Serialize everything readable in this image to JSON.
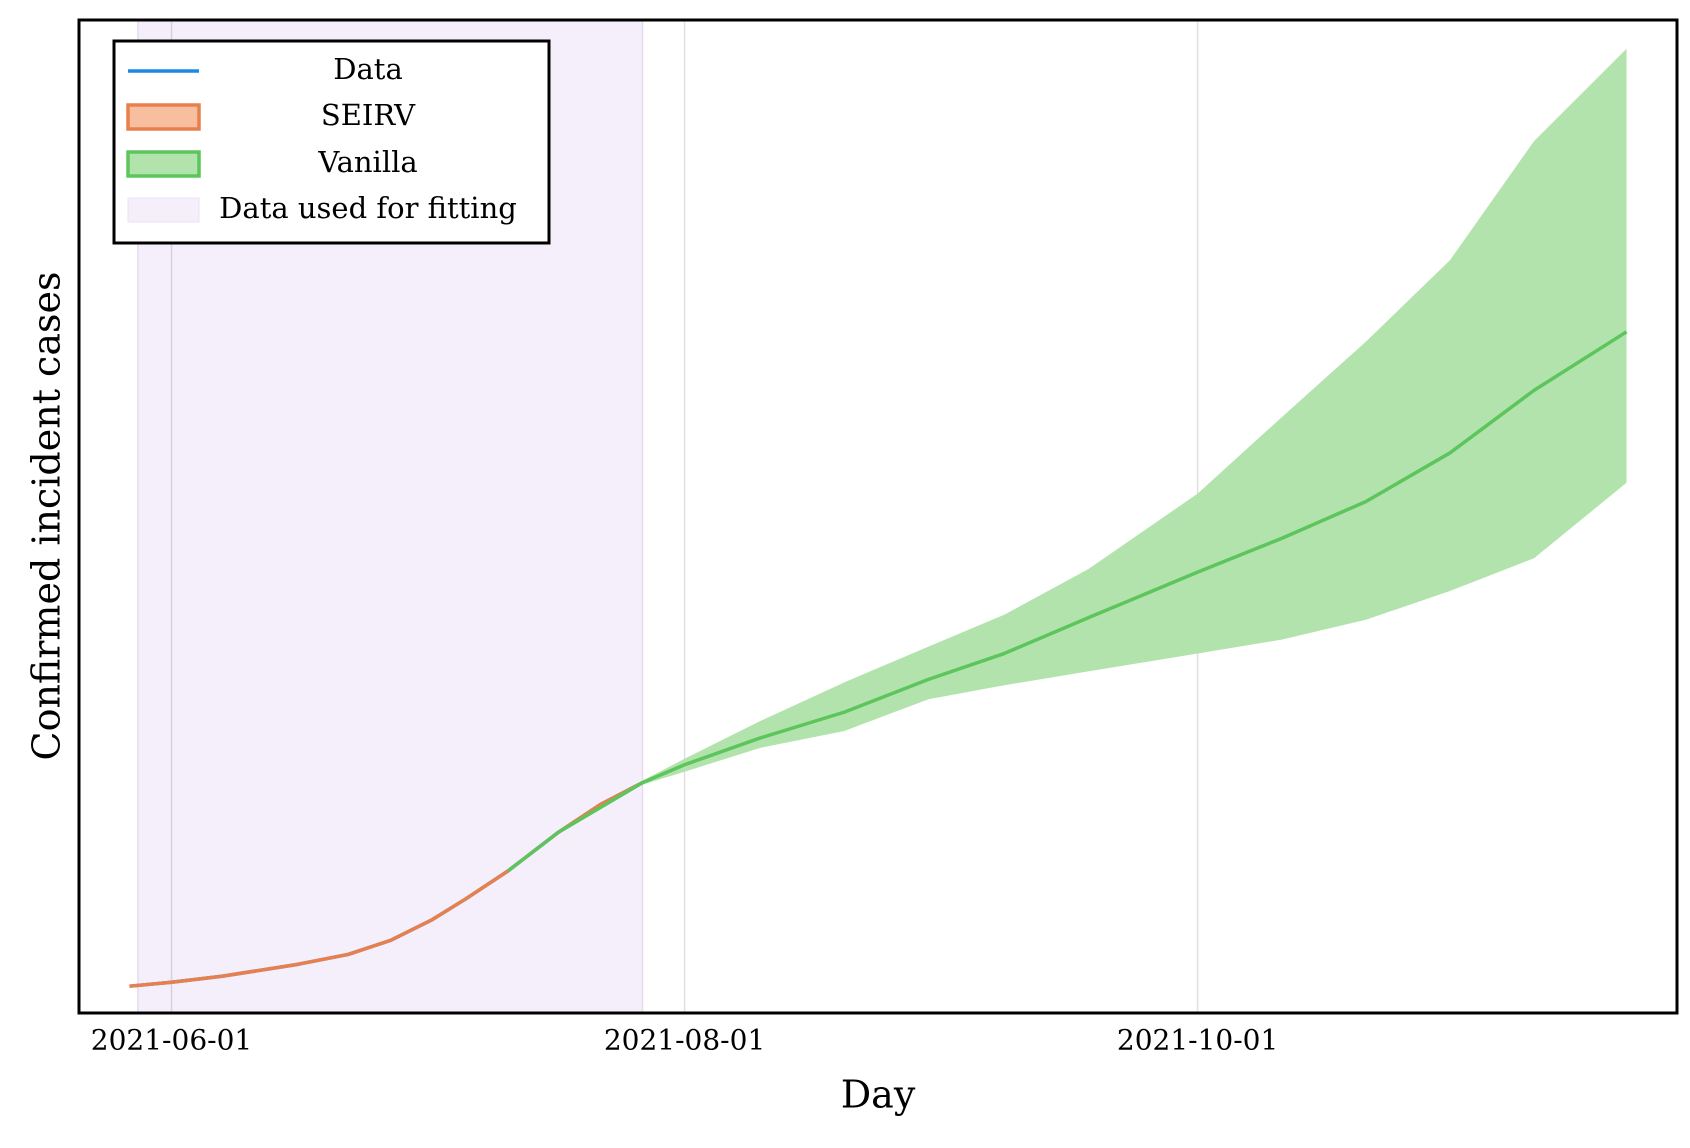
{
  "chart_data": {
    "type": "line",
    "xlabel": "Day",
    "ylabel": "Confirmed incident cases",
    "xlim": [
      "2021-05-21",
      "2021-11-27"
    ],
    "xticks": [
      "2021-06-01",
      "2021-08-01",
      "2021-10-01"
    ],
    "ylim": [
      0,
      100
    ],
    "grid": true,
    "legend": "upper left",
    "fit_range": {
      "name": "Data used for fitting",
      "start": "2021-05-28",
      "end": "2021-07-27",
      "color": "#f5eefb"
    },
    "series": [
      {
        "name": "Data",
        "color": "#1e88e5",
        "x": [
          "2021-05-27",
          "2021-06-01",
          "2021-06-07",
          "2021-06-16",
          "2021-06-22",
          "2021-06-27",
          "2021-07-02",
          "2021-07-06",
          "2021-07-11",
          "2021-07-17",
          "2021-07-22",
          "2021-07-27"
        ],
        "values": [
          2.7,
          3.1,
          3.7,
          4.9,
          5.9,
          7.3,
          9.4,
          11.5,
          14.3,
          18.2,
          21.0,
          23.2
        ]
      },
      {
        "name": "SEIRV",
        "color": "#e8804d",
        "band_color": "#f7bfa0",
        "x": [
          "2021-05-27",
          "2021-06-01",
          "2021-06-07",
          "2021-06-16",
          "2021-06-22",
          "2021-06-27",
          "2021-07-02",
          "2021-07-06",
          "2021-07-11",
          "2021-07-17",
          "2021-07-22",
          "2021-07-27"
        ],
        "values": [
          2.7,
          3.1,
          3.7,
          4.9,
          5.9,
          7.3,
          9.4,
          11.5,
          14.3,
          18.2,
          21.0,
          23.2
        ]
      },
      {
        "name": "Vanilla",
        "color": "#5cc55c",
        "band_color": "#b3e3ad",
        "x": [
          "2021-07-11",
          "2021-07-17",
          "2021-07-27",
          "2021-08-01",
          "2021-08-10",
          "2021-08-20",
          "2021-08-30",
          "2021-09-08",
          "2021-09-18",
          "2021-10-01",
          "2021-10-11",
          "2021-10-21",
          "2021-10-31",
          "2021-11-10",
          "2021-11-21"
        ],
        "values": [
          14.3,
          18.2,
          23.2,
          25.0,
          27.7,
          30.3,
          33.6,
          36.2,
          39.8,
          44.4,
          47.8,
          51.5,
          56.4,
          62.7,
          68.6
        ],
        "upper": [
          14.3,
          18.4,
          23.4,
          25.6,
          29.4,
          33.3,
          36.9,
          40.1,
          44.7,
          52.3,
          60.0,
          67.6,
          75.8,
          87.8,
          97.1
        ],
        "lower": [
          14.3,
          18.0,
          23.0,
          24.3,
          26.7,
          28.4,
          31.6,
          33.0,
          34.4,
          36.2,
          37.6,
          39.6,
          42.5,
          45.8,
          53.4
        ]
      }
    ]
  }
}
